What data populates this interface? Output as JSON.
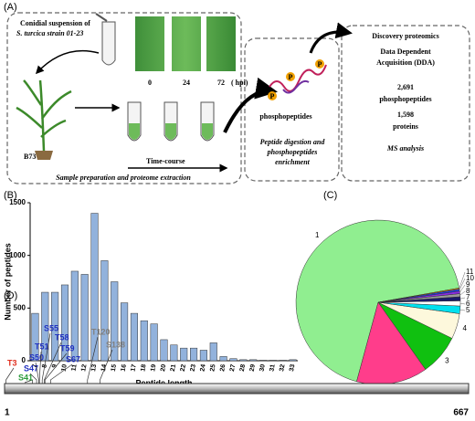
{
  "panel_labels": [
    "(A)",
    "(B)",
    "(C)",
    "(D)"
  ],
  "panel_a": {
    "inoculum": [
      "Conidial suspension of",
      "S. turcica strain 01-23"
    ],
    "timepoints": [
      "0",
      "24",
      "72"
    ],
    "time_unit": "( hpi)",
    "host": "B73",
    "time_course": "Time-course",
    "box1_title": "Sample preparation and proteome extraction",
    "phospho_symbol": "P",
    "intermediate": "phosphopeptides",
    "box2_title": [
      "Peptide digestion and",
      "phosphopeptides",
      "enrichment"
    ],
    "box3": {
      "heading": "Discovery proteomics",
      "method": [
        "Data Dependent",
        "Acquisition (DDA)"
      ],
      "counts": [
        {
          "value": "2,691",
          "label": "phosphopeptides"
        },
        {
          "value": "1,598",
          "label": "proteins"
        }
      ],
      "footer": "MS analysis"
    }
  },
  "chart_data": [
    {
      "type": "bar",
      "y_label": "Number of peptides",
      "x_label": "Peptide length",
      "categories": [
        "7",
        "8",
        "9",
        "10",
        "11",
        "12",
        "13",
        "14",
        "15",
        "16",
        "17",
        "18",
        "19",
        "20",
        "21",
        "22",
        "23",
        "24",
        "25",
        "26",
        "27",
        "28",
        "29",
        "30",
        "31",
        "32",
        "33"
      ],
      "values": [
        450,
        650,
        650,
        720,
        850,
        820,
        1400,
        950,
        750,
        550,
        450,
        380,
        350,
        200,
        150,
        120,
        120,
        100,
        170,
        40,
        20,
        10,
        10,
        5,
        5,
        5,
        10
      ],
      "color": "#92b2dc",
      "ylim": [
        0,
        1500
      ],
      "yticks": [
        0,
        500,
        1000,
        1500
      ]
    },
    {
      "type": "pie",
      "categories": [
        "1",
        "2",
        "3",
        "4",
        "5",
        "6",
        "7",
        "8",
        "9",
        "10",
        "11"
      ],
      "values": [
        68,
        14,
        8,
        5,
        1.5,
        1,
        0.8,
        0.6,
        0.5,
        0.4,
        0.2
      ],
      "colors": [
        "#90ee90",
        "#ff3d8b",
        "#10c010",
        "#fdf8dc",
        "#00e0ee",
        "#ffffff",
        "#1a1a6a",
        "#999999",
        "#8a2be2",
        "#2040e0",
        "#ff9900"
      ]
    }
  ],
  "panel_d": {
    "sequence_start": 1,
    "sequence_end": 667,
    "sites": [
      {
        "label": "T3",
        "position": 3,
        "color": "#e03020"
      },
      {
        "label": "S41",
        "position": 41,
        "color": "#2a9a3a"
      },
      {
        "label": "S47",
        "position": 47,
        "color": "#2030c0"
      },
      {
        "label": "S50",
        "position": 50,
        "color": "#2030c0"
      },
      {
        "label": "T51",
        "position": 51,
        "color": "#2030c0"
      },
      {
        "label": "S55",
        "position": 55,
        "color": "#2030c0"
      },
      {
        "label": "T58",
        "position": 58,
        "color": "#2030c0"
      },
      {
        "label": "T59",
        "position": 59,
        "color": "#2030c0"
      },
      {
        "label": "S67",
        "position": 67,
        "color": "#2030c0"
      },
      {
        "label": "T120",
        "position": 120,
        "color": "#808080"
      },
      {
        "label": "S138",
        "position": 138,
        "color": "#808080"
      }
    ]
  }
}
